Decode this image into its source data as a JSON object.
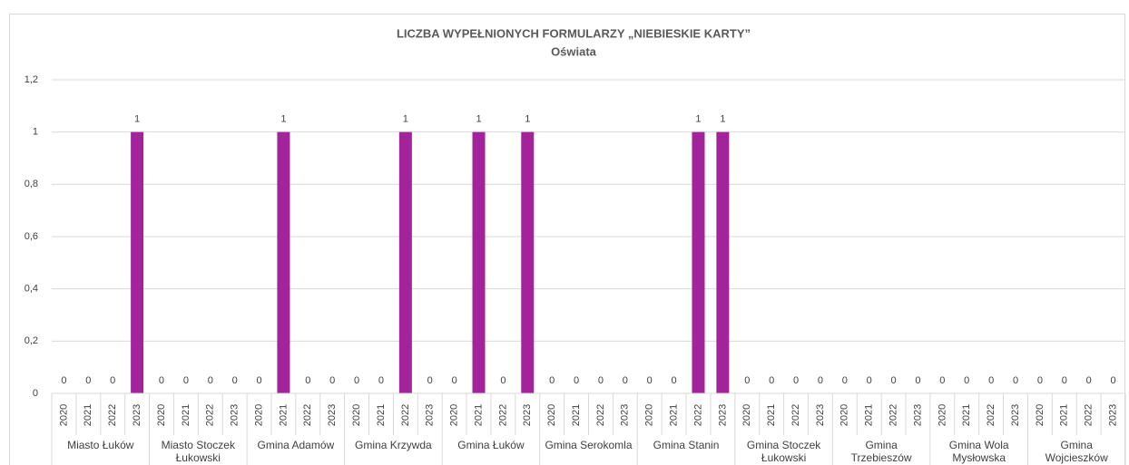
{
  "chart_data": {
    "type": "bar",
    "title": "LICZBA WYPEŁNIONYCH FORMULARZY „NIEBIESKIE KARTY”",
    "subtitle": "Oświata",
    "color": "#a3249a",
    "grid": true,
    "ylim": [
      0,
      1.2
    ],
    "yticks": [
      0,
      {
        "value": 0.2,
        "label": "0,2"
      },
      {
        "value": 0.4,
        "label": "0,4"
      },
      {
        "value": 0.6,
        "label": "0,6"
      },
      {
        "value": 0.8,
        "label": "0,8"
      },
      1,
      {
        "value": 1.2,
        "label": "1,2"
      }
    ],
    "groups": [
      {
        "name": "Miasto Łuków",
        "categories": [
          "2020",
          "2021",
          "2022",
          "2023"
        ],
        "values": [
          0,
          0,
          0,
          1
        ]
      },
      {
        "name": "Miasto Stoczek Łukowski",
        "categories": [
          "2020",
          "2021",
          "2022",
          "2023"
        ],
        "values": [
          0,
          0,
          0,
          0
        ]
      },
      {
        "name": "Gmina Adamów",
        "categories": [
          "2020",
          "2021",
          "2022",
          "2023"
        ],
        "values": [
          0,
          1,
          0,
          0
        ]
      },
      {
        "name": "Gmina Krzywda",
        "categories": [
          "2020",
          "2021",
          "2022",
          "2023"
        ],
        "values": [
          0,
          0,
          1,
          0
        ]
      },
      {
        "name": "Gmina Łuków",
        "categories": [
          "2020",
          "2021",
          "2022",
          "2023"
        ],
        "values": [
          0,
          1,
          0,
          1
        ]
      },
      {
        "name": "Gmina Serokomla",
        "categories": [
          "2020",
          "2021",
          "2022",
          "2023"
        ],
        "values": [
          0,
          0,
          0,
          0
        ]
      },
      {
        "name": "Gmina Stanin",
        "categories": [
          "2020",
          "2021",
          "2022",
          "2023"
        ],
        "values": [
          0,
          0,
          1,
          1
        ]
      },
      {
        "name": "Gmina Stoczek Łukowski",
        "categories": [
          "2020",
          "2021",
          "2022",
          "2023"
        ],
        "values": [
          0,
          0,
          0,
          0
        ]
      },
      {
        "name": "Gmina Trzebieszów",
        "categories": [
          "2020",
          "2021",
          "2022",
          "2023"
        ],
        "values": [
          0,
          0,
          0,
          0
        ]
      },
      {
        "name": "Gmina Wola Mysłowska",
        "categories": [
          "2020",
          "2021",
          "2022",
          "2023"
        ],
        "values": [
          0,
          0,
          0,
          0
        ]
      },
      {
        "name": "Gmina Wojcieszków",
        "categories": [
          "2020",
          "2021",
          "2022",
          "2023"
        ],
        "values": [
          0,
          0,
          0,
          0
        ]
      }
    ]
  }
}
